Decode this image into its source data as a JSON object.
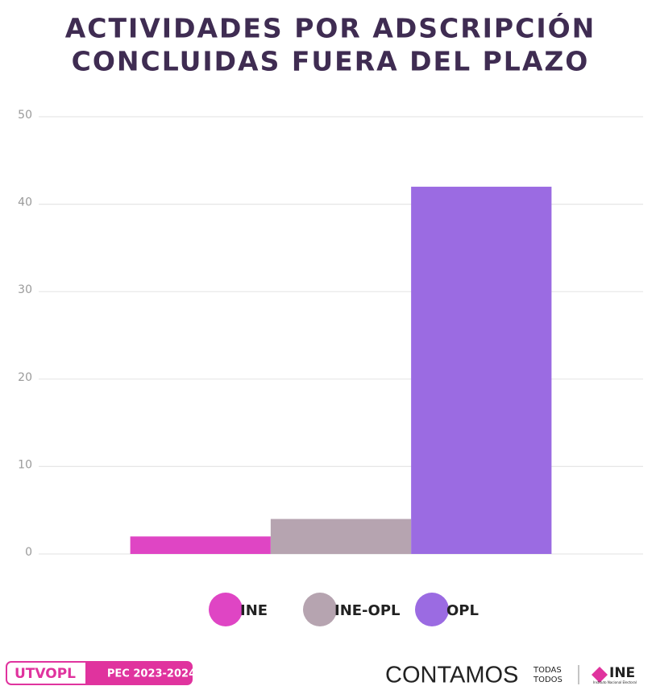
{
  "chart_data": {
    "type": "bar",
    "title": [
      "ACTIVIDADES POR ADSCRIPCIÓN",
      "CONCLUIDAS FUERA DEL PLAZO"
    ],
    "categories": [
      null
    ],
    "series": [
      {
        "name": "INE",
        "color": "#df45c4",
        "values": [
          2
        ]
      },
      {
        "name": "INE-OPL",
        "color": "#b6a4b0",
        "values": [
          4
        ]
      },
      {
        "name": "OPL",
        "color": "#9b6be2",
        "values": [
          42
        ]
      }
    ],
    "ylim": [
      0,
      50
    ],
    "yticks": [
      0,
      10,
      20,
      30,
      40,
      50
    ],
    "grid": true,
    "legend": "bottom"
  },
  "footer": {
    "left": [
      "UTVOPL",
      "PEC 2023-2024"
    ],
    "brand": "CONTAMOS",
    "brand_small": [
      "TODAS",
      "TODOS"
    ],
    "logo": "INE",
    "logo_sub": "Instituto Nacional Electoral"
  }
}
